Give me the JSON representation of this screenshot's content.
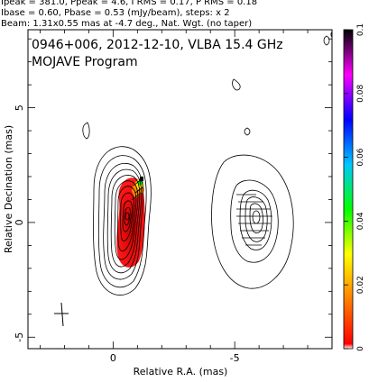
{
  "header": {
    "line1": "Ipeak = 381.0, Ppeak = 4.6, I RMS = 0.17, P RMS = 0.18",
    "line2": "Ibase = 0.60, Pbase = 0.53 (mJy/beam), steps: x 2",
    "line3": "Beam: 1.31x0.55 mas at -4.7 deg., Nat. Wgt. (no taper)"
  },
  "chart_data": {
    "type": "heatmap",
    "title": "0946+006, 2012-12-10, VLBA 15.4 GHz",
    "subtitle": "MOJAVE Program",
    "xlabel": "Relative R.A. (mas)",
    "ylabel": "Relative Decination (mas)",
    "xlim": [
      3.5,
      -9.0
    ],
    "ylim": [
      -5.5,
      8.4
    ],
    "xticks": [
      0,
      -5
    ],
    "yticks": [
      -5,
      0,
      5
    ],
    "colorbar": {
      "range": [
        0,
        0.1
      ],
      "ticks": [
        0,
        0.02,
        0.04,
        0.06,
        0.08,
        0.1
      ],
      "tick_labels": [
        "0",
        "0.02",
        "0.04",
        "0.06",
        "0.08",
        "0.1"
      ],
      "colors": [
        "#ffffff",
        "#ff0000",
        "#ff8000",
        "#ffff00",
        "#00ff00",
        "#00c8ff",
        "#0000ff",
        "#ff00ff",
        "#000000"
      ]
    },
    "components": [
      {
        "x": 0.0,
        "y": 0.0,
        "contours": 11,
        "polarized": true
      },
      {
        "x": -5.0,
        "y": 0.1,
        "contours": 6,
        "polarized": false
      }
    ],
    "beam": {
      "major_mas": 1.31,
      "minor_mas": 0.55,
      "pa_deg": -4.7
    },
    "grid": false
  }
}
